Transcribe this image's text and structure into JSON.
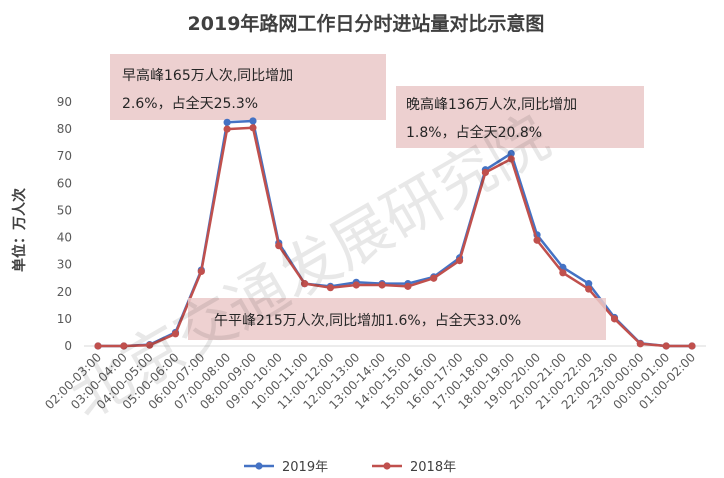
{
  "chart_data": {
    "type": "line",
    "title": "2019年路网工作日分时进站量对比示意图",
    "ylabel": "单位：万人次",
    "ylim": [
      0,
      90
    ],
    "yticks": [
      0,
      10,
      20,
      30,
      40,
      50,
      60,
      70,
      80,
      90
    ],
    "grid": false,
    "legend_position": "bottom",
    "categories": [
      "02:00-03:00",
      "03:00-04:00",
      "04:00-05:00",
      "05:00-06:00",
      "06:00-07:00",
      "07:00-08:00",
      "08:00-09:00",
      "09:00-10:00",
      "10:00-11:00",
      "11:00-12:00",
      "12:00-13:00",
      "13:00-14:00",
      "14:00-15:00",
      "15:00-16:00",
      "16:00-17:00",
      "17:00-18:00",
      "18:00-19:00",
      "19:00-20:00",
      "20:00-21:00",
      "21:00-22:00",
      "22:00-23:00",
      "23:00-00:00",
      "00:00-01:00",
      "01:00-02:00"
    ],
    "series": [
      {
        "name": "2019年",
        "color": "#4472C4",
        "values": [
          0,
          0,
          0.5,
          5,
          28,
          82.5,
          83,
          38,
          23,
          22,
          23.5,
          23,
          23,
          25.5,
          32.5,
          65,
          71,
          41,
          29,
          23,
          10.5,
          1,
          0,
          0
        ]
      },
      {
        "name": "2018年",
        "color": "#C0504D",
        "values": [
          0,
          0,
          0.3,
          4.5,
          27.5,
          80,
          80.5,
          37,
          23,
          21.5,
          22.5,
          22.5,
          22,
          25,
          31.5,
          64,
          69,
          39,
          27,
          21,
          10,
          0.8,
          0,
          0
        ]
      }
    ],
    "annotations": [
      {
        "lines": [
          "早高峰165万人次,同比增加",
          "2.6%，占全天25.3%"
        ]
      },
      {
        "lines": [
          "晚高峰136万人次,同比增加",
          "1.8%，占全天20.8%"
        ]
      },
      {
        "lines": [
          "午平峰215万人次,同比增加1.6%，占全天33.0%"
        ]
      }
    ]
  },
  "watermark": "北京交通发展研究院"
}
